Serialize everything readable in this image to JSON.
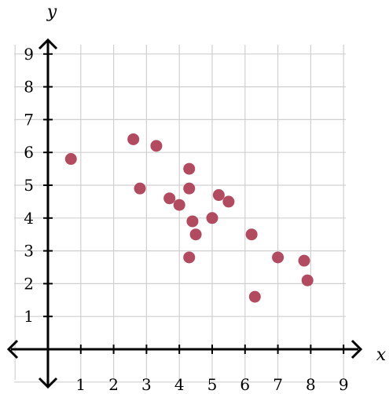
{
  "colors": {
    "point": "#b24a60",
    "grid": "#d0d0d0",
    "axis": "#000000"
  },
  "chart_data": {
    "type": "scatter",
    "title": "",
    "xlabel": "x",
    "ylabel": "y",
    "xlim": [
      -1,
      9.5
    ],
    "ylim": [
      -1.3,
      9.5
    ],
    "grid": true,
    "xticks": [
      1,
      2,
      3,
      4,
      5,
      6,
      7,
      8,
      9
    ],
    "yticks": [
      1,
      2,
      3,
      4,
      5,
      6,
      7,
      8,
      9
    ],
    "series": [
      {
        "points": [
          {
            "x": 0.7,
            "y": 5.8
          },
          {
            "x": 2.6,
            "y": 6.4
          },
          {
            "x": 2.8,
            "y": 4.9
          },
          {
            "x": 3.3,
            "y": 6.2
          },
          {
            "x": 3.7,
            "y": 4.6
          },
          {
            "x": 4.0,
            "y": 4.4
          },
          {
            "x": 4.3,
            "y": 5.5
          },
          {
            "x": 4.3,
            "y": 4.9
          },
          {
            "x": 4.4,
            "y": 3.9
          },
          {
            "x": 4.5,
            "y": 3.5
          },
          {
            "x": 4.3,
            "y": 2.8
          },
          {
            "x": 5.0,
            "y": 4.0
          },
          {
            "x": 5.2,
            "y": 4.7
          },
          {
            "x": 5.5,
            "y": 4.5
          },
          {
            "x": 6.2,
            "y": 3.5
          },
          {
            "x": 6.3,
            "y": 1.6
          },
          {
            "x": 7.0,
            "y": 2.8
          },
          {
            "x": 7.8,
            "y": 2.7
          },
          {
            "x": 7.9,
            "y": 2.1
          }
        ]
      }
    ]
  }
}
